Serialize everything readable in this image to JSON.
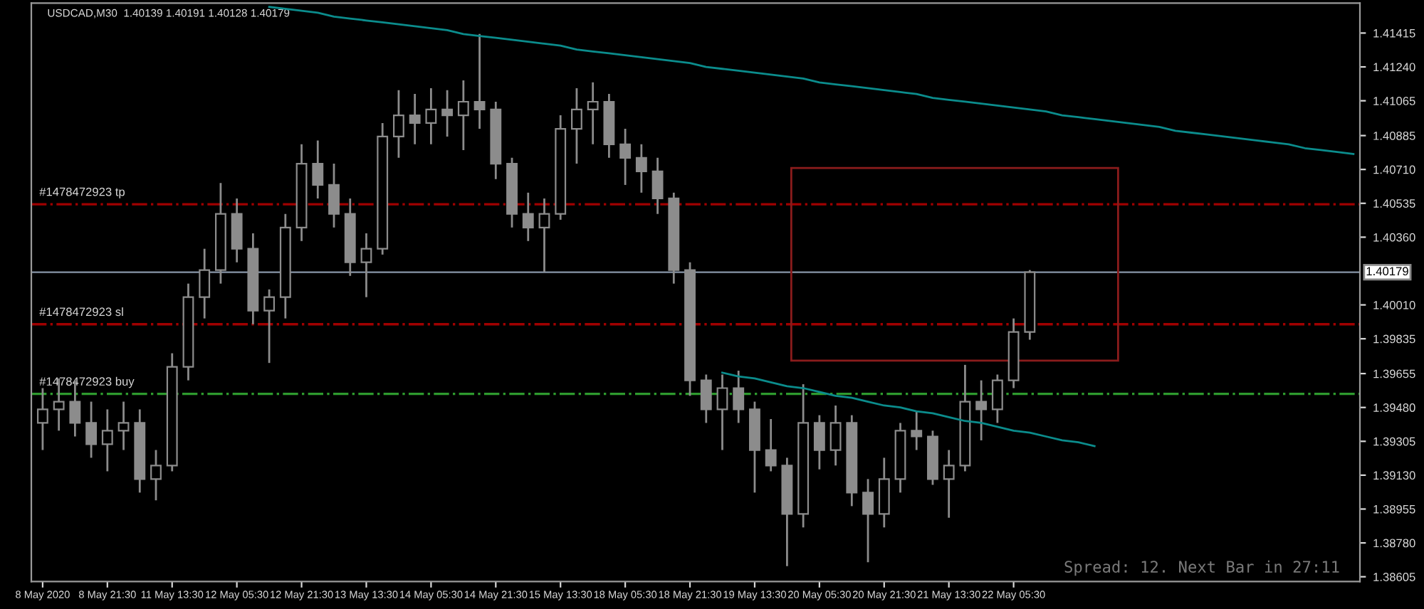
{
  "chart_data": {
    "type": "candlestick",
    "title": "USDCAD,M30  1.40139 1.40191 1.40128 1.40179",
    "categories": [
      "8 May 2020",
      null,
      null,
      null,
      "8 May 21:30",
      null,
      null,
      null,
      "11 May 13:30",
      null,
      null,
      null,
      "12 May 05:30",
      null,
      null,
      null,
      "12 May 21:30",
      null,
      null,
      null,
      "13 May 13:30",
      null,
      null,
      null,
      "14 May 05:30",
      null,
      null,
      null,
      "14 May 21:30",
      null,
      null,
      null,
      "15 May 13:30",
      null,
      null,
      null,
      "18 May 05:30",
      null,
      null,
      null,
      "18 May 21:30",
      null,
      null,
      null,
      "19 May 13:30",
      null,
      null,
      null,
      "20 May 05:30",
      null,
      null,
      null,
      "20 May 21:30",
      null,
      null,
      null,
      "21 May 13:30",
      null,
      null,
      null,
      "22 May 05:30",
      null,
      null,
      null,
      null,
      null,
      null,
      null,
      null,
      null,
      null,
      null,
      null,
      null,
      null,
      null,
      null,
      null,
      null,
      null,
      null,
      null
    ],
    "series": [
      {
        "type": "candlestick",
        "color": "#8c8c8c",
        "ohlc": [
          [
            1.394,
            1.3958,
            1.3926,
            1.3947
          ],
          [
            1.3947,
            1.3963,
            1.3936,
            1.3951
          ],
          [
            1.3951,
            1.3962,
            1.3933,
            1.394
          ],
          [
            1.394,
            1.3951,
            1.3922,
            1.3929
          ],
          [
            1.3929,
            1.3947,
            1.3915,
            1.3936
          ],
          [
            1.3936,
            1.3951,
            1.3926,
            1.394
          ],
          [
            1.394,
            1.3947,
            1.3904,
            1.3911
          ],
          [
            1.3911,
            1.3926,
            1.39,
            1.3918
          ],
          [
            1.3918,
            1.3976,
            1.3915,
            1.3969
          ],
          [
            1.3969,
            1.4012,
            1.3962,
            1.4005
          ],
          [
            1.4005,
            1.403,
            1.3994,
            1.4019
          ],
          [
            1.4019,
            1.4064,
            1.4012,
            1.4048
          ],
          [
            1.4048,
            1.4056,
            1.4023,
            1.403
          ],
          [
            1.403,
            1.4038,
            1.3991,
            1.3998
          ],
          [
            1.3998,
            1.4009,
            1.3971,
            1.4005
          ],
          [
            1.4005,
            1.4048,
            1.3994,
            1.4041
          ],
          [
            1.4041,
            1.4084,
            1.4034,
            1.4074
          ],
          [
            1.4074,
            1.4086,
            1.4056,
            1.4063
          ],
          [
            1.4063,
            1.4074,
            1.4041,
            1.4048
          ],
          [
            1.4048,
            1.4056,
            1.4016,
            1.4023
          ],
          [
            1.4023,
            1.4038,
            1.4005,
            1.403
          ],
          [
            1.403,
            1.4095,
            1.4027,
            1.4088
          ],
          [
            1.4088,
            1.4112,
            1.4077,
            1.4099
          ],
          [
            1.4099,
            1.411,
            1.4084,
            1.4095
          ],
          [
            1.4095,
            1.4113,
            1.4084,
            1.4102
          ],
          [
            1.4102,
            1.4112,
            1.4088,
            1.4099
          ],
          [
            1.4099,
            1.4117,
            1.4081,
            1.4106
          ],
          [
            1.4106,
            1.4141,
            1.4092,
            1.4102
          ],
          [
            1.4102,
            1.4106,
            1.4066,
            1.4074
          ],
          [
            1.4074,
            1.4077,
            1.4041,
            1.4048
          ],
          [
            1.4048,
            1.4059,
            1.4034,
            1.4041
          ],
          [
            1.4041,
            1.4056,
            1.4018,
            1.4048
          ],
          [
            1.4048,
            1.4099,
            1.4045,
            1.4092
          ],
          [
            1.4092,
            1.4113,
            1.4074,
            1.4102
          ],
          [
            1.4102,
            1.4116,
            1.4084,
            1.4106
          ],
          [
            1.4106,
            1.411,
            1.4077,
            1.4084
          ],
          [
            1.4084,
            1.4092,
            1.4063,
            1.4077
          ],
          [
            1.4077,
            1.4084,
            1.4059,
            1.407
          ],
          [
            1.407,
            1.4077,
            1.4048,
            1.4056
          ],
          [
            1.4056,
            1.4059,
            1.4012,
            1.4019
          ],
          [
            1.4019,
            1.4023,
            1.3954,
            1.3962
          ],
          [
            1.3962,
            1.3965,
            1.394,
            1.3947
          ],
          [
            1.3947,
            1.3965,
            1.3926,
            1.3958
          ],
          [
            1.3958,
            1.3967,
            1.394,
            1.3947
          ],
          [
            1.3947,
            1.3951,
            1.3904,
            1.3926
          ],
          [
            1.3926,
            1.3942,
            1.3915,
            1.3918
          ],
          [
            1.3918,
            1.3922,
            1.3866,
            1.3893
          ],
          [
            1.3893,
            1.396,
            1.3886,
            1.394
          ],
          [
            1.394,
            1.3944,
            1.3916,
            1.3926
          ],
          [
            1.3926,
            1.3949,
            1.3918,
            1.394
          ],
          [
            1.394,
            1.3944,
            1.3897,
            1.3904
          ],
          [
            1.3904,
            1.3911,
            1.3868,
            1.3893
          ],
          [
            1.3893,
            1.3922,
            1.3886,
            1.3911
          ],
          [
            1.3911,
            1.394,
            1.3904,
            1.3936
          ],
          [
            1.3936,
            1.3946,
            1.3926,
            1.3933
          ],
          [
            1.3933,
            1.3936,
            1.3908,
            1.3911
          ],
          [
            1.3911,
            1.3926,
            1.3891,
            1.3918
          ],
          [
            1.3918,
            1.397,
            1.3915,
            1.3951
          ],
          [
            1.3951,
            1.3962,
            1.3931,
            1.3947
          ],
          [
            1.3947,
            1.3965,
            1.394,
            1.3962
          ],
          [
            1.3962,
            1.3994,
            1.3958,
            1.3987
          ],
          [
            1.3987,
            1.4019,
            1.3983,
            1.40179
          ],
          null,
          null,
          null,
          null,
          null,
          null,
          null,
          null,
          null,
          null,
          null,
          null,
          null,
          null,
          null,
          null,
          null,
          null,
          null,
          null
        ]
      },
      {
        "type": "line",
        "color": "#0b8c8c",
        "values": [
          null,
          null,
          null,
          null,
          null,
          null,
          null,
          null,
          null,
          null,
          null,
          null,
          null,
          null,
          1.4155,
          1.4154,
          1.4153,
          1.4152,
          1.415,
          1.4149,
          1.4148,
          1.4147,
          1.4146,
          1.4145,
          1.4144,
          1.4143,
          1.4141,
          1.414,
          1.4139,
          1.4138,
          1.4137,
          1.4136,
          1.4135,
          1.4133,
          1.4132,
          1.4131,
          1.413,
          1.4129,
          1.4128,
          1.4127,
          1.4126,
          1.4124,
          1.4123,
          1.4122,
          1.4121,
          1.412,
          1.4119,
          1.4118,
          1.4116,
          1.4115,
          1.4114,
          1.4113,
          1.4112,
          1.4111,
          1.411,
          1.4108,
          1.4107,
          1.4106,
          1.4105,
          1.4104,
          1.4103,
          1.4102,
          1.4101,
          1.4099,
          1.4098,
          1.4097,
          1.4096,
          1.4095,
          1.4094,
          1.4093,
          1.4091,
          1.409,
          1.4089,
          1.4088,
          1.4087,
          1.4086,
          1.4085,
          1.4084,
          1.4082,
          1.4081,
          1.408,
          1.4079
        ]
      },
      {
        "type": "line",
        "color": "#0b8c8c",
        "values": [
          null,
          null,
          null,
          null,
          null,
          null,
          null,
          null,
          null,
          null,
          null,
          null,
          null,
          null,
          null,
          null,
          null,
          null,
          null,
          null,
          null,
          null,
          null,
          null,
          null,
          null,
          null,
          null,
          null,
          null,
          null,
          null,
          null,
          null,
          null,
          null,
          null,
          null,
          null,
          null,
          null,
          null,
          1.3966,
          1.3964,
          1.3963,
          1.3961,
          1.3959,
          1.3958,
          1.3956,
          1.3954,
          1.3953,
          1.3951,
          1.3949,
          1.3948,
          1.3946,
          1.3945,
          1.3943,
          1.3941,
          1.394,
          1.3938,
          1.3936,
          1.3935,
          1.3933,
          1.3931,
          1.393,
          1.3928,
          null,
          null,
          null,
          null,
          null,
          null,
          null,
          null,
          null,
          null,
          null,
          null,
          null,
          null,
          null,
          null
        ]
      }
    ],
    "ylim": [
      1.3858,
      1.4157
    ],
    "yticks": [
      1.41415,
      {
        "value": 1.4124,
        "label": "1.41240"
      },
      1.41065,
      1.40885,
      {
        "value": 1.4071,
        "label": "1.40710"
      },
      1.40535,
      {
        "value": 1.4036,
        "label": "1.40360"
      },
      {
        "value": 1.4001,
        "label": "1.40010"
      },
      1.39835,
      1.39655,
      {
        "value": 1.3948,
        "label": "1.39480"
      },
      1.39305,
      {
        "value": 1.3913,
        "label": "1.39130"
      },
      1.38955,
      {
        "value": 1.3878,
        "label": "1.38780"
      },
      1.38605
    ],
    "ref_lines": [
      {
        "axis": "y",
        "value": 1.4053,
        "label": "#1478472923 tp",
        "color": "#a00000",
        "line_style": "dashdot"
      },
      {
        "axis": "y",
        "value": 1.3991,
        "label": "#1478472923 sl",
        "color": "#a00000",
        "line_style": "dashdot"
      },
      {
        "axis": "y",
        "value": 1.3955,
        "label": "#1478472923 buy",
        "color": "#2e9a2e",
        "line_style": "dashdot"
      },
      {
        "axis": "y",
        "value": 1.40179,
        "label": "1.40179",
        "color": "#8896a8",
        "line_style": "solid"
      }
    ],
    "annotations": [
      "Spread: 12. Next Bar in 27:11"
    ],
    "grid": false,
    "legend": false
  }
}
